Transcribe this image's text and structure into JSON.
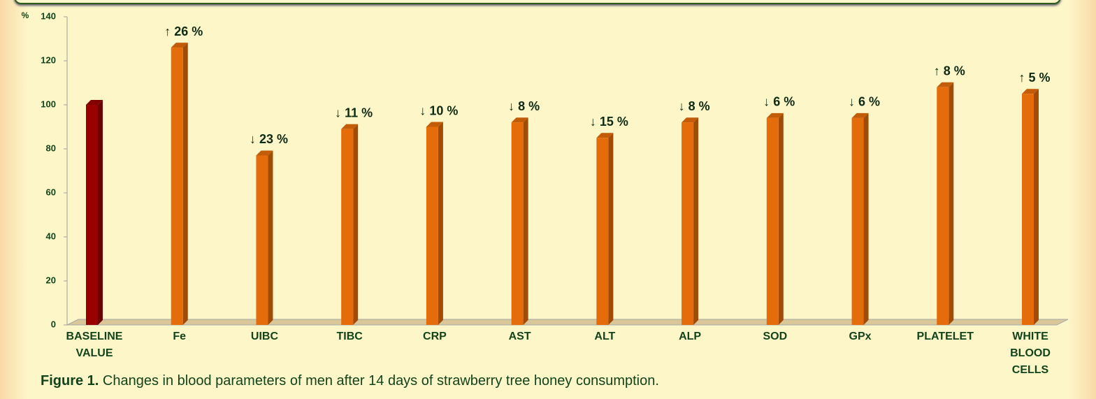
{
  "chart_data": {
    "type": "bar3d",
    "ylabel": "%",
    "categories": [
      "BASELINE VALUE",
      "Fe",
      "UIBC",
      "TIBC",
      "CRP",
      "AST",
      "ALT",
      "ALP",
      "SOD",
      "GPx",
      "PLATELET",
      "WHITE BLOOD CELLS"
    ],
    "values": [
      100,
      126,
      77,
      89,
      90,
      92,
      85,
      92,
      94,
      94,
      108,
      105
    ],
    "annotations": [
      null,
      "↑ 26 %",
      "↓ 23 %",
      "↓ 11 %",
      "↓ 10 %",
      "↓ 8 %",
      "↓ 15 %",
      "↓ 8 %",
      "↓ 6 %",
      "↓ 6 %",
      "↑ 8 %",
      "↑ 5 %"
    ],
    "colors": [
      "#9a0000",
      "#e46c0a",
      "#e46c0a",
      "#e46c0a",
      "#e46c0a",
      "#e46c0a",
      "#e46c0a",
      "#e46c0a",
      "#e46c0a",
      "#e46c0a",
      "#e46c0a",
      "#e46c0a"
    ],
    "ylim": [
      0,
      140
    ],
    "yticks": [
      0,
      20,
      40,
      60,
      80,
      100,
      120,
      140
    ],
    "caption": {
      "label": "Figure 1.",
      "text": "Changes in blood parameters of men after 14 days of strawberry tree honey consumption."
    }
  }
}
